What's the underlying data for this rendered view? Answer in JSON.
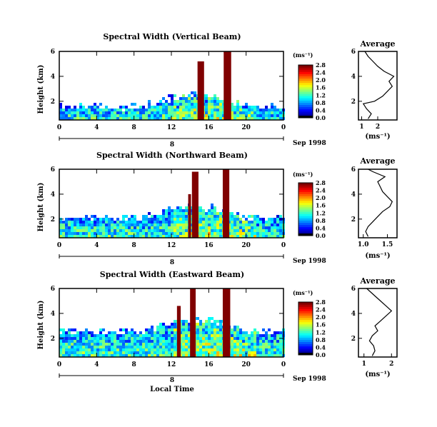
{
  "chart_data": [
    {
      "type": "heatmap",
      "title": "Spectral Width (Vertical Beam)",
      "ylabel": "Height (km)",
      "xlim": [
        0,
        24
      ],
      "ylim": [
        0.5,
        6
      ],
      "x_ticks": [
        "0",
        "4",
        "8",
        "12",
        "16",
        "20",
        "0"
      ],
      "y_ticks": [
        "2",
        "4",
        "6"
      ],
      "day_label": "8",
      "date_label": "Sep 1998",
      "colorbar": {
        "title": "(ms⁻¹)",
        "ticks": [
          "0.0",
          "0.4",
          "0.8",
          "1.2",
          "1.6",
          "2.0",
          "2.4",
          "2.8"
        ]
      },
      "bands": [
        {
          "t_start": 14.8,
          "t_end": 15.5,
          "h_top": 5.2,
          "value": 3.0
        },
        {
          "t_start": 17.6,
          "t_end": 18.4,
          "h_top": 6.0,
          "value": 3.0
        }
      ],
      "average_profile": {
        "title": "Average",
        "xlabel": "(ms⁻¹)",
        "x_ticks": [
          "1",
          "2"
        ],
        "xlim": [
          0.8,
          3.2
        ],
        "ylim": [
          0.5,
          6
        ],
        "height": [
          0.6,
          1.0,
          1.4,
          1.8,
          2.0,
          2.4,
          2.8,
          3.2,
          3.6,
          4.0,
          4.4,
          4.8,
          5.2,
          5.6,
          6.0
        ],
        "width": [
          1.4,
          1.6,
          1.3,
          1.1,
          1.8,
          2.3,
          2.6,
          2.9,
          2.7,
          3.0,
          2.4,
          2.0,
          1.7,
          1.4,
          1.2
        ]
      }
    },
    {
      "type": "heatmap",
      "title": "Spectral Width (Northward Beam)",
      "ylabel": "Height (km)",
      "xlim": [
        0,
        24
      ],
      "ylim": [
        0.5,
        6
      ],
      "x_ticks": [
        "0",
        "4",
        "8",
        "12",
        "16",
        "20",
        "0"
      ],
      "y_ticks": [
        "2",
        "4",
        "6"
      ],
      "day_label": "8",
      "date_label": "Sep 1998",
      "colorbar": {
        "title": "(ms⁻¹)",
        "ticks": [
          "0.0",
          "0.4",
          "0.8",
          "1.2",
          "1.6",
          "2.0",
          "2.4",
          "2.8"
        ]
      },
      "bands": [
        {
          "t_start": 14.2,
          "t_end": 14.9,
          "h_top": 5.8,
          "value": 3.0
        },
        {
          "t_start": 17.5,
          "t_end": 18.2,
          "h_top": 6.0,
          "value": 3.0
        },
        {
          "t_start": 13.8,
          "t_end": 14.1,
          "h_top": 4.0,
          "value": 2.9
        }
      ],
      "average_profile": {
        "title": "Average",
        "xlabel": "(ms⁻¹)",
        "x_ticks": [
          "1.0",
          "1.5"
        ],
        "xlim": [
          0.9,
          1.7
        ],
        "ylim": [
          0.5,
          6
        ],
        "height": [
          0.6,
          1.0,
          1.4,
          1.8,
          2.2,
          2.6,
          3.0,
          3.4,
          3.8,
          4.2,
          4.6,
          5.0,
          5.4,
          5.8,
          6.0
        ],
        "width": [
          1.1,
          1.05,
          1.1,
          1.2,
          1.3,
          1.4,
          1.55,
          1.6,
          1.5,
          1.4,
          1.35,
          1.3,
          1.45,
          1.2,
          1.1
        ]
      }
    },
    {
      "type": "heatmap",
      "title": "Spectral Width (Eastward Beam)",
      "ylabel": "Height (km)",
      "xlim": [
        0,
        24
      ],
      "ylim": [
        0.5,
        6
      ],
      "x_ticks": [
        "0",
        "4",
        "8",
        "12",
        "16",
        "20",
        "0"
      ],
      "y_ticks": [
        "2",
        "4",
        "6"
      ],
      "day_label": "8",
      "date_label": "Sep 1998",
      "xlabel": "Local Time",
      "colorbar": {
        "title": "(ms⁻¹)",
        "ticks": [
          "0.0",
          "0.4",
          "0.8",
          "1.2",
          "1.6",
          "2.0",
          "2.4",
          "2.8"
        ]
      },
      "bands": [
        {
          "t_start": 14.0,
          "t_end": 14.6,
          "h_top": 6.0,
          "value": 3.0
        },
        {
          "t_start": 17.5,
          "t_end": 18.3,
          "h_top": 6.0,
          "value": 3.0
        },
        {
          "t_start": 12.6,
          "t_end": 13.0,
          "h_top": 4.6,
          "value": 2.9
        }
      ],
      "average_profile": {
        "title": "Average",
        "xlabel": "(ms⁻¹)",
        "x_ticks": [
          "1",
          "2"
        ],
        "xlim": [
          0.8,
          2.2
        ],
        "ylim": [
          0.5,
          6
        ],
        "height": [
          0.6,
          1.0,
          1.4,
          1.8,
          2.2,
          2.6,
          3.0,
          3.4,
          3.8,
          4.2,
          4.6,
          5.0,
          5.4,
          5.8,
          6.0
        ],
        "width": [
          1.3,
          1.4,
          1.35,
          1.2,
          1.3,
          1.5,
          1.4,
          1.6,
          1.8,
          2.0,
          1.8,
          1.6,
          1.4,
          1.2,
          1.1
        ]
      }
    }
  ]
}
